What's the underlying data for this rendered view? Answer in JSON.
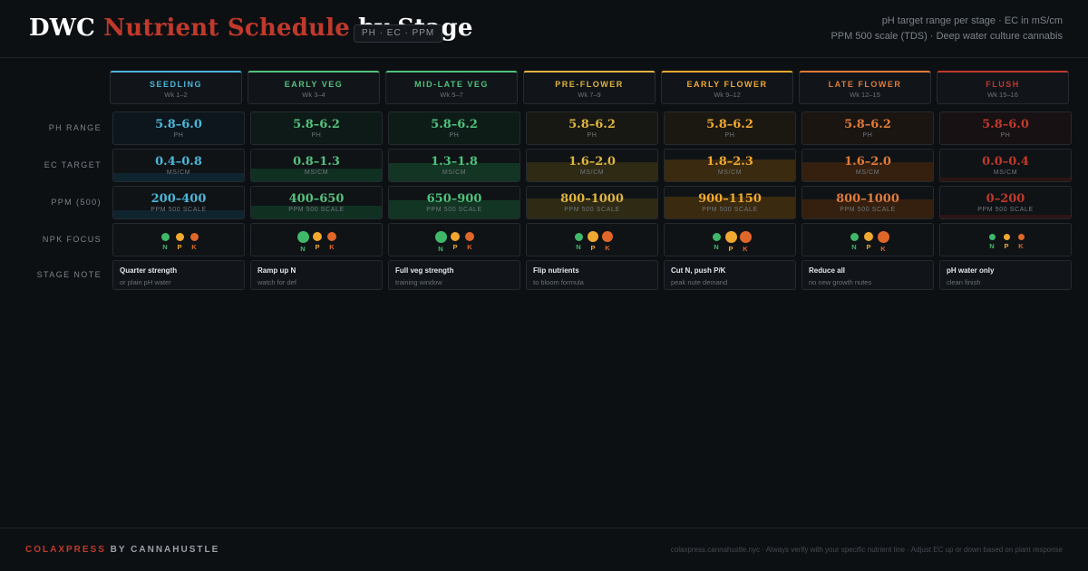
{
  "header": {
    "title_part1": "DWC ",
    "title_part2": "Nutrient Schedule",
    "title_part3": " by Stage",
    "badge": "PH · EC · PPM",
    "legend_line1": "pH target range per stage  ·  EC in mS/cm",
    "legend_line2": "PPM 500 scale (TDS)  ·  Deep water culture cannabis"
  },
  "row_labels": [
    "PH RANGE",
    "EC TARGET",
    "PPM (500)",
    "NPK FOCUS",
    "STAGE NOTE"
  ],
  "cell_units": {
    "ph": "PH",
    "ec": "MS/CM",
    "ppm": "PPM 500 SCALE"
  },
  "npk_letters": [
    "N",
    "P",
    "K"
  ],
  "npk_colors": [
    "#3fb86a",
    "#f0a830",
    "#e0672a"
  ],
  "stages": [
    {
      "name": "SEEDLING",
      "weeks": "Wk 1–2",
      "color": "#4db6d9",
      "tint": "#0e2530",
      "ph": "5.8–6.0",
      "ec": "0.4–0.8",
      "ppm": "200–400",
      "ec_level": 0.35,
      "ppm_level": 0.35,
      "npk": [
        0.5,
        0.5,
        0.5
      ],
      "note_title": "Quarter strength",
      "note_sub": "or plain pH water"
    },
    {
      "name": "EARLY VEG",
      "weeks": "Wk 3–4",
      "color": "#55c17d",
      "tint": "#103022",
      "ph": "5.8–6.2",
      "ec": "0.8–1.3",
      "ppm": "400–650",
      "ec_level": 0.55,
      "ppm_level": 0.55,
      "npk": [
        1.0,
        0.6,
        0.6
      ],
      "note_title": "Ramp up N",
      "note_sub": "watch for def"
    },
    {
      "name": "MID-LATE VEG",
      "weeks": "Wk 5–7",
      "color": "#4fc27c",
      "tint": "#133524",
      "ph": "5.8–6.2",
      "ec": "1.3–1.8",
      "ppm": "650–900",
      "ec_level": 0.8,
      "ppm_level": 0.8,
      "npk": [
        1.0,
        0.6,
        0.6
      ],
      "note_title": "Full veg strength",
      "note_sub": "training window"
    },
    {
      "name": "PRE-FLOWER",
      "weeks": "Wk 7–9",
      "color": "#e0b440",
      "tint": "#2e2a14",
      "ph": "5.8–6.2",
      "ec": "1.6–2.0",
      "ppm": "800–1000",
      "ec_level": 0.85,
      "ppm_level": 0.9,
      "npk": [
        0.5,
        0.85,
        0.85
      ],
      "note_title": "Flip nutrients",
      "note_sub": "to bloom formula"
    },
    {
      "name": "EARLY FLOWER",
      "weeks": "Wk 9–12",
      "color": "#f0a830",
      "tint": "#3a2a10",
      "ph": "5.8–6.2",
      "ec": "1.8–2.3",
      "ppm": "900–1150",
      "ec_level": 1.0,
      "ppm_level": 1.0,
      "npk": [
        0.5,
        0.95,
        0.95
      ],
      "note_title": "Cut N, push P/K",
      "note_sub": "peak nute demand"
    },
    {
      "name": "LATE FLOWER",
      "weeks": "Wk 12–15",
      "color": "#e07a3a",
      "tint": "#35200f",
      "ph": "5.8–6.2",
      "ec": "1.6–2.0",
      "ppm": "800–1000",
      "ec_level": 0.85,
      "ppm_level": 0.85,
      "npk": [
        0.5,
        0.6,
        0.95
      ],
      "note_title": "Reduce all",
      "note_sub": "no new growth nutes"
    },
    {
      "name": "FLUSH",
      "weeks": "Wk 15–16",
      "color": "#c0392b",
      "tint": "#2d1414",
      "ph": "5.8–6.0",
      "ec": "0.0–0.4",
      "ppm": "0–200",
      "ec_level": 0.15,
      "ppm_level": 0.15,
      "npk": [
        0.25,
        0.25,
        0.25
      ],
      "note_title": "pH water only",
      "note_sub": "clean finish"
    }
  ],
  "footer": {
    "brand_part1": "COLAXPRESS",
    "brand_part2": " BY CANNAHUSTLE",
    "footnote": "colaxpress.cannahustle.nyc  ·  Always verify with your specific nutrient line  ·  Adjust EC up or down based on plant response"
  }
}
